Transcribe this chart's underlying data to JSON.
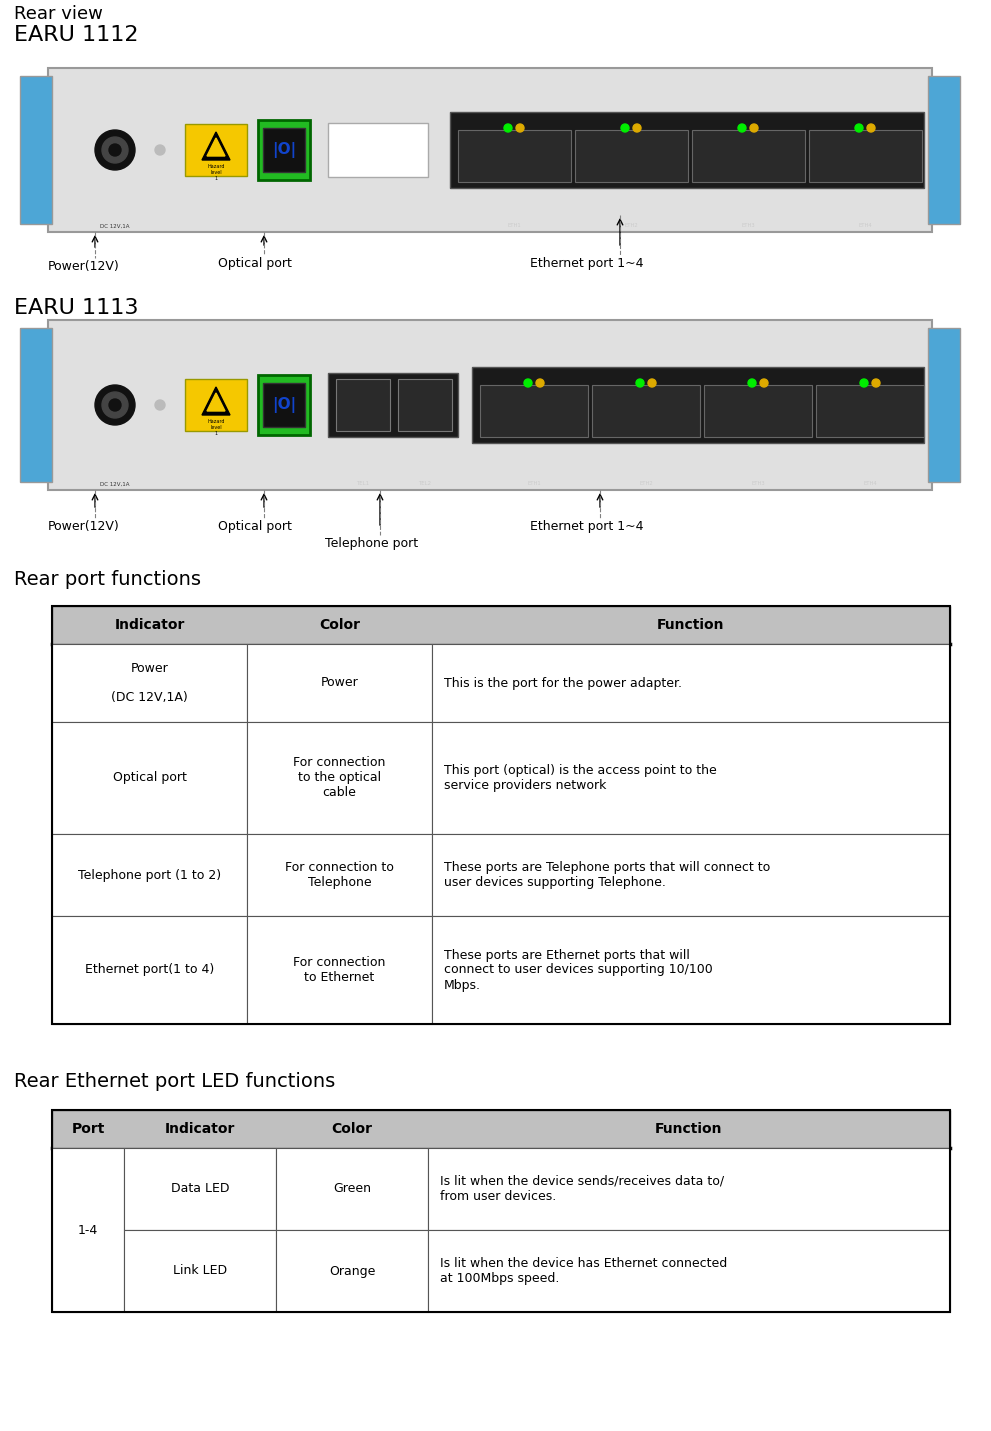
{
  "title_rear_view": "Rear view",
  "title_earu1112": "EARU 1112",
  "title_earu1113": "EARU 1113",
  "section1_title": "Rear port functions",
  "section2_title": "Rear Ethernet port LED functions",
  "table1_headers": [
    "Indicator",
    "Color",
    "Function"
  ],
  "table1_rows": [
    [
      "Power\n\n(DC 12V,1A)",
      "Power",
      "This is the port for the power adapter."
    ],
    [
      "Optical port",
      "For connection\nto the optical\ncable",
      "This port (optical) is the access point to the\nservice providers network"
    ],
    [
      "Telephone port (1 to 2)",
      "For connection to\nTelephone",
      "These ports are Telephone ports that will connect to\nuser devices supporting Telephone."
    ],
    [
      "Ethernet port(1 to 4)",
      "For connection\nto Ethernet",
      "These ports are Ethernet ports that will\nconnect to user devices supporting 10/100\nMbps."
    ]
  ],
  "table2_headers": [
    "Port",
    "Indicator",
    "Color",
    "Function"
  ],
  "table2_rows": [
    [
      "1-4",
      "Data LED",
      "Green",
      "Is lit when the device sends/receives data to/\nfrom user devices."
    ],
    [
      "",
      "Link LED",
      "Orange",
      "Is lit when the device has Ethernet connected\nat 100Mbps speed."
    ]
  ],
  "header_bg": "#c0c0c0",
  "border_color": "#555555",
  "bg_color": "#ffffff",
  "earu1112_label_power": "Power(12V)",
  "earu1112_label_optical": "Optical port",
  "earu1112_label_ethernet": "Ethernet port 1~4",
  "earu1113_label_power": "Power(12V)",
  "earu1113_label_optical": "Optical port",
  "earu1113_label_ethernet": "Ethernet port 1~4",
  "earu1113_label_telephone": "Telephone port"
}
